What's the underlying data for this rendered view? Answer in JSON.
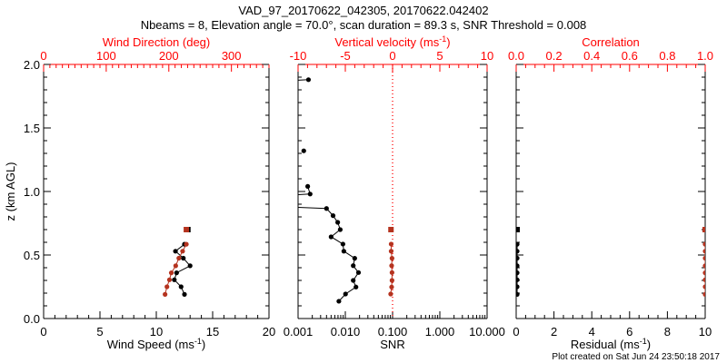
{
  "chart_data": {
    "type": "scatter",
    "title": "VAD_97_20170622_042305, 20170622.042402",
    "subtitle": "Nbeams = 8, Elevation angle = 70.0°, scan duration = 89.3 s, SNR Threshold = 0.008",
    "footer": "Plot created on Sat Jun 24 23:50:18 2017",
    "colors": {
      "axis": "#000000",
      "secondary_axis": "#ff0000",
      "secondary_marks": "#b5331f"
    },
    "ylabel": "z (km AGL)",
    "ylim": [
      0,
      2
    ],
    "yticks": [
      "0.0",
      "0.5",
      "1.0",
      "1.5",
      "2.0"
    ],
    "panels": [
      {
        "name": "wind",
        "xlabel": {
          "text": "Wind Speed (ms",
          "sup": "-1",
          "close": ")"
        },
        "xlim": [
          0,
          20
        ],
        "xticks": [
          "0",
          "5",
          "10",
          "15",
          "20"
        ],
        "top_label": {
          "text": "Wind Direction (deg)",
          "sup": "",
          "close": ""
        },
        "top_lim": [
          0,
          360
        ],
        "top_ticks": [
          "0",
          "100",
          "200",
          "300"
        ],
        "series": [
          {
            "name": "Wind Speed",
            "axis": "bottom",
            "color": "#000000",
            "z": [
              0.7,
              0.585,
              0.53,
              0.475,
              0.415,
              0.36,
              0.305,
              0.25,
              0.19
            ],
            "values": [
              12.8,
              12.5,
              11.7,
              12.4,
              13.0,
              11.8,
              11.6,
              12.2,
              12.5
            ]
          },
          {
            "name": "Wind Direction",
            "axis": "top",
            "color": "#b5331f",
            "z": [
              0.7,
              0.585,
              0.53,
              0.475,
              0.415,
              0.36,
              0.305,
              0.25,
              0.19
            ],
            "values": [
              228,
              228,
              222,
              216,
              211,
              204,
              201,
              197,
              194
            ]
          }
        ]
      },
      {
        "name": "snr",
        "xlabel": {
          "text": "SNR",
          "sup": "",
          "close": ""
        },
        "xlim": [
          0.001,
          10
        ],
        "xscale": "log",
        "xticks": [
          "0.001",
          "0.010",
          "0.100",
          "1.000",
          "10.000"
        ],
        "top_label": {
          "text": "Vertical velocity (ms",
          "sup": "-1",
          "close": ")"
        },
        "top_lim": [
          -10,
          10
        ],
        "top_ticks": [
          "-10",
          "-5",
          "0",
          "5",
          "10"
        ],
        "series": [
          {
            "name": "SNR",
            "axis": "bottom",
            "color": "#000000",
            "z": [
              1.88,
              1.84,
              1.32,
              1.04,
              0.98,
              0.92,
              0.866,
              0.81,
              0.757,
              0.7,
              0.643,
              0.586,
              0.53,
              0.474,
              0.416,
              0.362,
              0.3,
              0.248,
              0.193,
              0.136
            ],
            "values": [
              0.00166,
              1e-05,
              0.00132,
              0.0016,
              0.0018,
              1e-06,
              0.004,
              0.0055,
              0.0069,
              0.0078,
              0.005,
              0.0089,
              0.0093,
              0.0158,
              0.0147,
              0.019,
              0.0147,
              0.0168,
              0.0101,
              0.0073
            ],
            "segments_break_after": [
              1,
              2
            ]
          },
          {
            "name": "Vertical velocity",
            "axis": "top",
            "color": "#b5331f",
            "z": [
              0.7,
              0.586,
              0.53,
              0.474,
              0.416,
              0.362,
              0.3,
              0.248,
              0.193
            ],
            "values": [
              -0.17,
              -0.15,
              -0.15,
              -0.06,
              -0.1,
              -0.06,
              -0.06,
              -0.1,
              -0.2
            ]
          }
        ]
      },
      {
        "name": "residual",
        "xlabel": {
          "text": "Residual (ms",
          "sup": "-1",
          "close": ")"
        },
        "xlim": [
          0,
          10
        ],
        "xticks": [
          "0",
          "2",
          "4",
          "6",
          "8",
          "10"
        ],
        "top_label": {
          "text": "Correlation",
          "sup": "",
          "close": ""
        },
        "top_lim": [
          0,
          1
        ],
        "top_ticks": [
          "0.0",
          "0.2",
          "0.4",
          "0.6",
          "0.8",
          "1.0"
        ],
        "series": [
          {
            "name": "Residual",
            "axis": "bottom",
            "color": "#000000",
            "z": [
              0.7,
              0.585,
              0.53,
              0.475,
              0.415,
              0.36,
              0.305,
              0.25,
              0.19
            ],
            "values": [
              0.05,
              0.05,
              0.05,
              0.05,
              0.05,
              0.05,
              0.05,
              0.05,
              0.05
            ]
          },
          {
            "name": "Correlation",
            "axis": "top",
            "color": "#b5331f",
            "z": [
              0.7,
              0.585,
              0.53,
              0.475,
              0.415,
              0.36,
              0.305,
              0.25,
              0.19
            ],
            "values": [
              1.0,
              1.0,
              1.0,
              1.0,
              1.0,
              1.0,
              1.0,
              1.0,
              1.0
            ]
          }
        ]
      }
    ]
  }
}
